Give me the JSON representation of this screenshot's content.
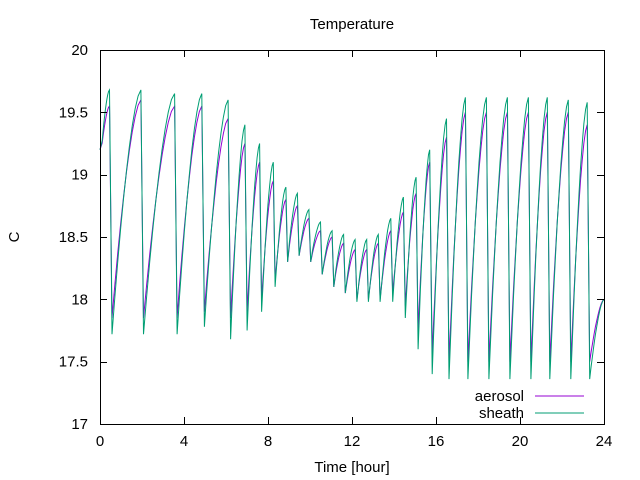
{
  "chart_data": {
    "type": "line",
    "title": "Temperature",
    "xlabel": "Time [hour]",
    "ylabel": "C",
    "xlim": [
      0,
      24
    ],
    "ylim": [
      17,
      20
    ],
    "xticks": [
      0,
      4,
      8,
      12,
      16,
      20,
      24
    ],
    "yticks": [
      17,
      17.5,
      18,
      18.5,
      19,
      19.5,
      20
    ],
    "legend": "bottom-right",
    "grid": false,
    "series": [
      {
        "name": "aerosol",
        "color": "#9400d3",
        "cycles": [
          {
            "start": 0.0,
            "end": 0.45,
            "low": 19.2,
            "high": 19.55
          },
          {
            "start": 0.45,
            "end": 1.95,
            "low": 17.85,
            "high": 19.6
          },
          {
            "start": 1.95,
            "end": 3.55,
            "low": 17.85,
            "high": 19.55
          },
          {
            "start": 3.55,
            "end": 4.85,
            "low": 17.85,
            "high": 19.55
          },
          {
            "start": 4.85,
            "end": 6.1,
            "low": 17.9,
            "high": 19.45
          },
          {
            "start": 6.1,
            "end": 6.9,
            "low": 17.85,
            "high": 19.25
          },
          {
            "start": 6.9,
            "end": 7.6,
            "low": 17.9,
            "high": 19.1
          },
          {
            "start": 7.6,
            "end": 8.25,
            "low": 18.0,
            "high": 18.95
          },
          {
            "start": 8.25,
            "end": 8.85,
            "low": 18.15,
            "high": 18.8
          },
          {
            "start": 8.85,
            "end": 9.4,
            "low": 18.3,
            "high": 18.75
          },
          {
            "start": 9.4,
            "end": 9.95,
            "low": 18.35,
            "high": 18.65
          },
          {
            "start": 9.95,
            "end": 10.5,
            "low": 18.3,
            "high": 18.55
          },
          {
            "start": 10.5,
            "end": 11.05,
            "low": 18.2,
            "high": 18.5
          },
          {
            "start": 11.05,
            "end": 11.6,
            "low": 18.1,
            "high": 18.45
          },
          {
            "start": 11.6,
            "end": 12.15,
            "low": 18.05,
            "high": 18.4
          },
          {
            "start": 12.15,
            "end": 12.7,
            "low": 18.0,
            "high": 18.4
          },
          {
            "start": 12.7,
            "end": 13.25,
            "low": 18.0,
            "high": 18.45
          },
          {
            "start": 13.25,
            "end": 13.85,
            "low": 18.0,
            "high": 18.55
          },
          {
            "start": 13.85,
            "end": 14.45,
            "low": 18.05,
            "high": 18.7
          },
          {
            "start": 14.45,
            "end": 15.05,
            "low": 17.95,
            "high": 18.85
          },
          {
            "start": 15.05,
            "end": 15.7,
            "low": 17.75,
            "high": 19.1
          },
          {
            "start": 15.7,
            "end": 16.5,
            "low": 17.55,
            "high": 19.3
          },
          {
            "start": 16.5,
            "end": 17.4,
            "low": 17.5,
            "high": 19.5
          },
          {
            "start": 17.4,
            "end": 18.4,
            "low": 17.5,
            "high": 19.5
          },
          {
            "start": 18.4,
            "end": 19.4,
            "low": 17.5,
            "high": 19.5
          },
          {
            "start": 19.4,
            "end": 20.4,
            "low": 17.5,
            "high": 19.5
          },
          {
            "start": 20.4,
            "end": 21.3,
            "low": 17.5,
            "high": 19.5
          },
          {
            "start": 21.3,
            "end": 22.3,
            "low": 17.5,
            "high": 19.5
          },
          {
            "start": 22.3,
            "end": 23.2,
            "low": 17.5,
            "high": 19.4
          },
          {
            "start": 23.2,
            "end": 24.0,
            "low": 17.5,
            "high": 18.0
          }
        ]
      },
      {
        "name": "sheath",
        "color": "#009e73",
        "cycles": [
          {
            "start": 0.0,
            "end": 0.45,
            "low": 19.2,
            "high": 19.68
          },
          {
            "start": 0.45,
            "end": 1.95,
            "low": 17.72,
            "high": 19.68
          },
          {
            "start": 1.95,
            "end": 3.55,
            "low": 17.72,
            "high": 19.65
          },
          {
            "start": 3.55,
            "end": 4.85,
            "low": 17.72,
            "high": 19.65
          },
          {
            "start": 4.85,
            "end": 6.1,
            "low": 17.78,
            "high": 19.6
          },
          {
            "start": 6.1,
            "end": 6.9,
            "low": 17.68,
            "high": 19.4
          },
          {
            "start": 6.9,
            "end": 7.6,
            "low": 17.75,
            "high": 19.25
          },
          {
            "start": 7.6,
            "end": 8.25,
            "low": 17.9,
            "high": 19.1
          },
          {
            "start": 8.25,
            "end": 8.85,
            "low": 18.1,
            "high": 18.9
          },
          {
            "start": 8.85,
            "end": 9.4,
            "low": 18.3,
            "high": 18.85
          },
          {
            "start": 9.4,
            "end": 9.95,
            "low": 18.35,
            "high": 18.72
          },
          {
            "start": 9.95,
            "end": 10.5,
            "low": 18.3,
            "high": 18.62
          },
          {
            "start": 10.5,
            "end": 11.05,
            "low": 18.2,
            "high": 18.55
          },
          {
            "start": 11.05,
            "end": 11.6,
            "low": 18.1,
            "high": 18.52
          },
          {
            "start": 11.6,
            "end": 12.15,
            "low": 18.05,
            "high": 18.48
          },
          {
            "start": 12.15,
            "end": 12.7,
            "low": 17.98,
            "high": 18.48
          },
          {
            "start": 12.7,
            "end": 13.25,
            "low": 17.98,
            "high": 18.52
          },
          {
            "start": 13.25,
            "end": 13.85,
            "low": 17.98,
            "high": 18.65
          },
          {
            "start": 13.85,
            "end": 14.45,
            "low": 17.98,
            "high": 18.82
          },
          {
            "start": 14.45,
            "end": 15.05,
            "low": 17.85,
            "high": 18.98
          },
          {
            "start": 15.05,
            "end": 15.7,
            "low": 17.6,
            "high": 19.2
          },
          {
            "start": 15.7,
            "end": 16.5,
            "low": 17.4,
            "high": 19.45
          },
          {
            "start": 16.5,
            "end": 17.4,
            "low": 17.36,
            "high": 19.62
          },
          {
            "start": 17.4,
            "end": 18.4,
            "low": 17.36,
            "high": 19.62
          },
          {
            "start": 18.4,
            "end": 19.4,
            "low": 17.36,
            "high": 19.62
          },
          {
            "start": 19.4,
            "end": 20.4,
            "low": 17.36,
            "high": 19.62
          },
          {
            "start": 20.4,
            "end": 21.3,
            "low": 17.36,
            "high": 19.62
          },
          {
            "start": 21.3,
            "end": 22.3,
            "low": 17.36,
            "high": 19.6
          },
          {
            "start": 22.3,
            "end": 23.2,
            "low": 17.36,
            "high": 19.58
          },
          {
            "start": 23.2,
            "end": 24.0,
            "low": 17.36,
            "high": 18.0
          }
        ]
      }
    ]
  }
}
